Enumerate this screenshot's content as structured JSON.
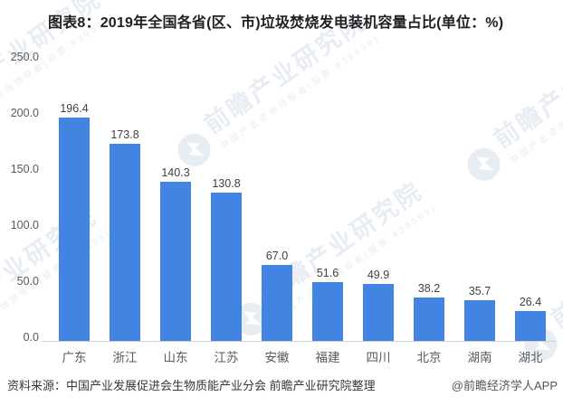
{
  "title": "图表8：2019年全国各省(区、市)垃圾焚烧发电装机容量占比(单位：%)",
  "chart_data": {
    "type": "bar",
    "title": "图表8：2019年全国各省(区、市)垃圾焚烧发电装机容量占比(单位：%)",
    "unit": "%",
    "categories": [
      "广东",
      "浙江",
      "山东",
      "江苏",
      "安徽",
      "福建",
      "四川",
      "北京",
      "湖南",
      "湖北"
    ],
    "values": [
      196.4,
      173.8,
      140.3,
      130.8,
      67.0,
      51.6,
      49.9,
      38.2,
      35.7,
      26.4
    ],
    "xlabel": "",
    "ylabel": "",
    "ylim": [
      0,
      250
    ],
    "ytick_labels": [
      "250.0",
      "200.0",
      "150.0",
      "100.0",
      "50.0",
      "0.0"
    ],
    "grid": false,
    "legend": false,
    "value_labels": true,
    "value_label_decimals": 1
  },
  "footer": {
    "source": "资料来源：中国产业发展促进会生物质能产业分会 前瞻产业研究院整理",
    "credit": "@前瞻经济学人APP"
  },
  "watermark": {
    "brand": "前瞻产业研究院",
    "tagline": "中国产业咨询领导者(股票:839599)",
    "logo": "qianzhan-bird-circle-icon"
  },
  "colors": {
    "bar": "#4184E2",
    "axis_line": "#D2D2D2",
    "tick_label": "#595959",
    "value_label": "#404040",
    "title": "#212121",
    "watermark": "#E8ECF3"
  }
}
